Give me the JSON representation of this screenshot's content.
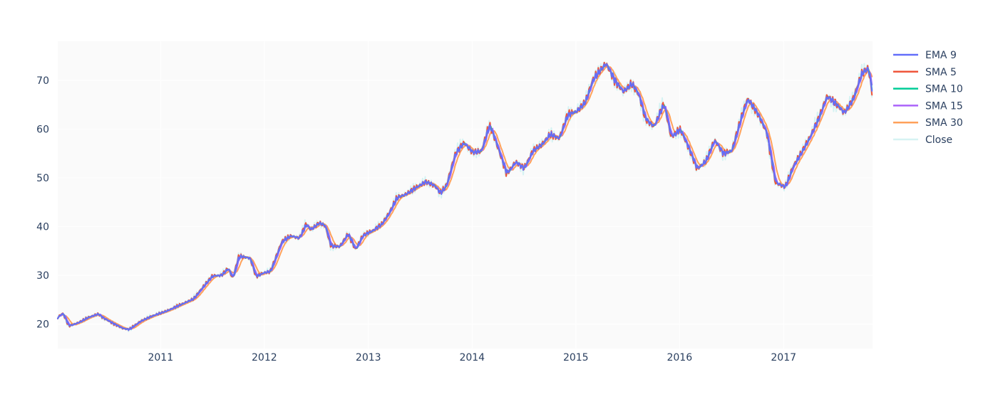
{
  "chart_data": {
    "type": "line",
    "title": "",
    "xlabel": "",
    "ylabel": "",
    "x_ticks": [
      "2011",
      "2012",
      "2013",
      "2014",
      "2015",
      "2016",
      "2017"
    ],
    "y_ticks": [
      20,
      30,
      40,
      50,
      60,
      70
    ],
    "xlim": [
      "2010-01-04",
      "2017-11-10"
    ],
    "ylim": [
      15,
      78
    ],
    "grid": true,
    "legend_position": "right",
    "plot_background": "#fafafa",
    "series": [
      {
        "name": "EMA 9",
        "color": "#636efa",
        "width": 2
      },
      {
        "name": "SMA 5",
        "color": "#ef553b",
        "width": 2
      },
      {
        "name": "SMA 10",
        "color": "#00cc96",
        "width": 2
      },
      {
        "name": "SMA 15",
        "color": "#ab63fa",
        "width": 2
      },
      {
        "name": "SMA 30",
        "color": "#ffa15a",
        "width": 2
      },
      {
        "name": "Close",
        "color": "#d6f3f3",
        "width": 2
      }
    ],
    "close_anchor_points": [
      [
        "2010-01-04",
        21.5
      ],
      [
        "2010-01-20",
        22.3
      ],
      [
        "2010-02-10",
        19.6
      ],
      [
        "2010-03-15",
        20.3
      ],
      [
        "2010-04-20",
        21.4
      ],
      [
        "2010-05-25",
        22.1
      ],
      [
        "2010-06-10",
        21.3
      ],
      [
        "2010-07-20",
        20.0
      ],
      [
        "2010-08-20",
        19.1
      ],
      [
        "2010-09-10",
        18.9
      ],
      [
        "2010-10-20",
        20.6
      ],
      [
        "2010-12-01",
        21.7
      ],
      [
        "2011-01-20",
        22.7
      ],
      [
        "2011-03-10",
        24.0
      ],
      [
        "2011-04-25",
        25.2
      ],
      [
        "2011-06-01",
        27.9
      ],
      [
        "2011-06-30",
        29.9
      ],
      [
        "2011-08-01",
        30.0
      ],
      [
        "2011-08-25",
        31.5
      ],
      [
        "2011-09-10",
        29.3
      ],
      [
        "2011-10-01",
        34.0
      ],
      [
        "2011-11-10",
        33.5
      ],
      [
        "2011-12-01",
        29.7
      ],
      [
        "2011-12-25",
        30.5
      ],
      [
        "2012-01-20",
        30.8
      ],
      [
        "2012-03-01",
        37.0
      ],
      [
        "2012-04-01",
        38.1
      ],
      [
        "2012-05-01",
        37.6
      ],
      [
        "2012-05-25",
        40.6
      ],
      [
        "2012-06-10",
        39.3
      ],
      [
        "2012-07-10",
        40.8
      ],
      [
        "2012-08-01",
        40.1
      ],
      [
        "2012-08-20",
        36.0
      ],
      [
        "2012-09-20",
        35.9
      ],
      [
        "2012-10-20",
        38.6
      ],
      [
        "2012-11-15",
        35.2
      ],
      [
        "2012-12-10",
        38.2
      ],
      [
        "2013-01-15",
        39.2
      ],
      [
        "2013-02-15",
        40.5
      ],
      [
        "2013-03-15",
        43.0
      ],
      [
        "2013-04-10",
        46.0
      ],
      [
        "2013-05-10",
        46.6
      ],
      [
        "2013-06-15",
        48.0
      ],
      [
        "2013-07-20",
        49.2
      ],
      [
        "2013-08-20",
        48.4
      ],
      [
        "2013-09-10",
        46.8
      ],
      [
        "2013-10-01",
        48.5
      ],
      [
        "2013-11-01",
        55.0
      ],
      [
        "2013-12-01",
        57.2
      ],
      [
        "2014-01-01",
        55.2
      ],
      [
        "2014-02-01",
        55.5
      ],
      [
        "2014-03-01",
        61.0
      ],
      [
        "2014-04-01",
        56.0
      ],
      [
        "2014-05-01",
        50.8
      ],
      [
        "2014-06-01",
        53.3
      ],
      [
        "2014-07-01",
        51.9
      ],
      [
        "2014-08-01",
        55.6
      ],
      [
        "2014-09-01",
        56.8
      ],
      [
        "2014-10-01",
        59.0
      ],
      [
        "2014-11-01",
        58.0
      ],
      [
        "2014-12-01",
        63.0
      ],
      [
        "2015-01-01",
        63.6
      ],
      [
        "2015-02-01",
        65.5
      ],
      [
        "2015-03-01",
        70.3
      ],
      [
        "2015-04-15",
        73.5
      ],
      [
        "2015-05-15",
        70.0
      ],
      [
        "2015-06-15",
        67.6
      ],
      [
        "2015-07-15",
        69.4
      ],
      [
        "2015-08-10",
        66.8
      ],
      [
        "2015-09-01",
        62.0
      ],
      [
        "2015-10-01",
        60.5
      ],
      [
        "2015-11-05",
        65.3
      ],
      [
        "2015-12-01",
        58.3
      ],
      [
        "2016-01-01",
        60.0
      ],
      [
        "2016-02-01",
        56.0
      ],
      [
        "2016-03-01",
        51.8
      ],
      [
        "2016-04-01",
        53.5
      ],
      [
        "2016-05-01",
        57.8
      ],
      [
        "2016-06-01",
        54.9
      ],
      [
        "2016-07-01",
        55.6
      ],
      [
        "2016-08-01",
        62.0
      ],
      [
        "2016-08-25",
        66.3
      ],
      [
        "2016-10-01",
        63.0
      ],
      [
        "2016-11-01",
        59.2
      ],
      [
        "2016-12-01",
        49.0
      ],
      [
        "2017-01-05",
        48.1
      ],
      [
        "2017-02-01",
        52.3
      ],
      [
        "2017-03-01",
        55.0
      ],
      [
        "2017-04-01",
        58.3
      ],
      [
        "2017-05-01",
        62.0
      ],
      [
        "2017-06-01",
        66.8
      ],
      [
        "2017-07-01",
        65.2
      ],
      [
        "2017-08-01",
        63.3
      ],
      [
        "2017-09-01",
        66.2
      ],
      [
        "2017-10-01",
        71.5
      ],
      [
        "2017-10-25",
        72.5
      ],
      [
        "2017-11-10",
        66.0
      ]
    ]
  }
}
